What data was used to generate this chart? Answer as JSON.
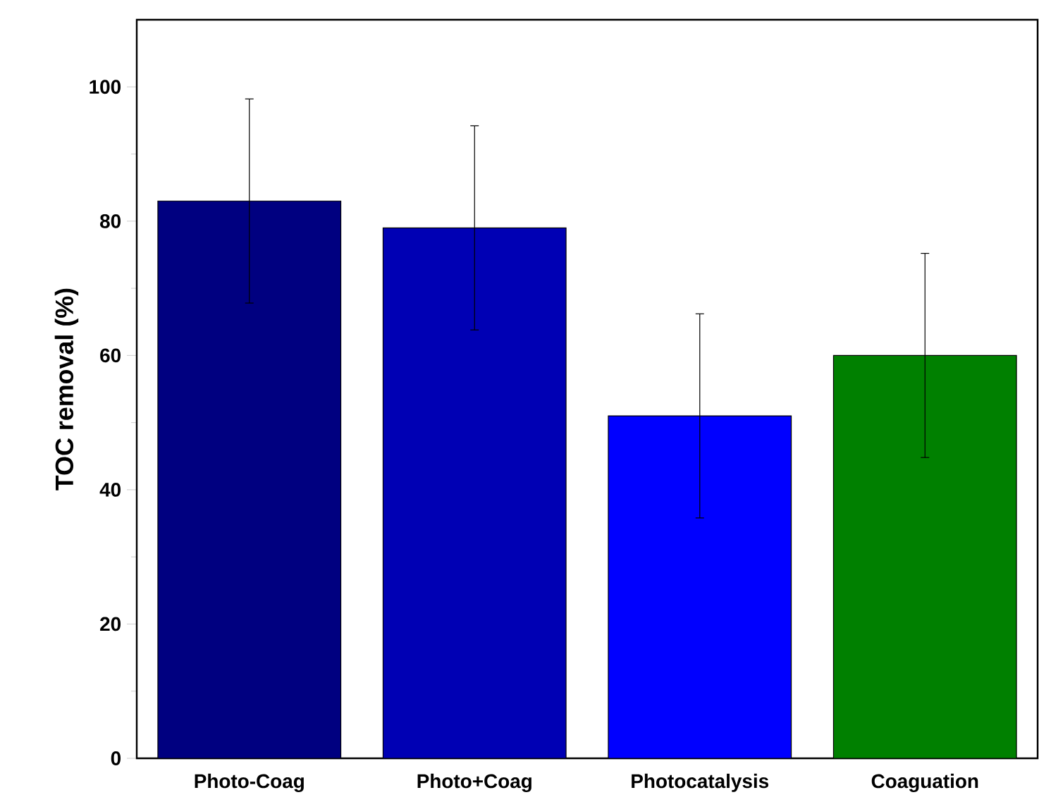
{
  "chart_data": {
    "type": "bar",
    "ylabel": "TOC removal (%)",
    "categories": [
      "Photo-Coag",
      "Photo+Coag",
      "Photocatalysis",
      "Coaguation"
    ],
    "values": [
      83,
      79,
      51,
      60
    ],
    "errors": [
      15.2,
      15.2,
      15.2,
      15.2
    ],
    "colors": [
      "#000080",
      "#0000b4",
      "#0000ff",
      "#008000"
    ],
    "ylim": [
      0,
      110
    ],
    "yticks": [
      0,
      20,
      40,
      60,
      80,
      100
    ],
    "grid": false
  }
}
